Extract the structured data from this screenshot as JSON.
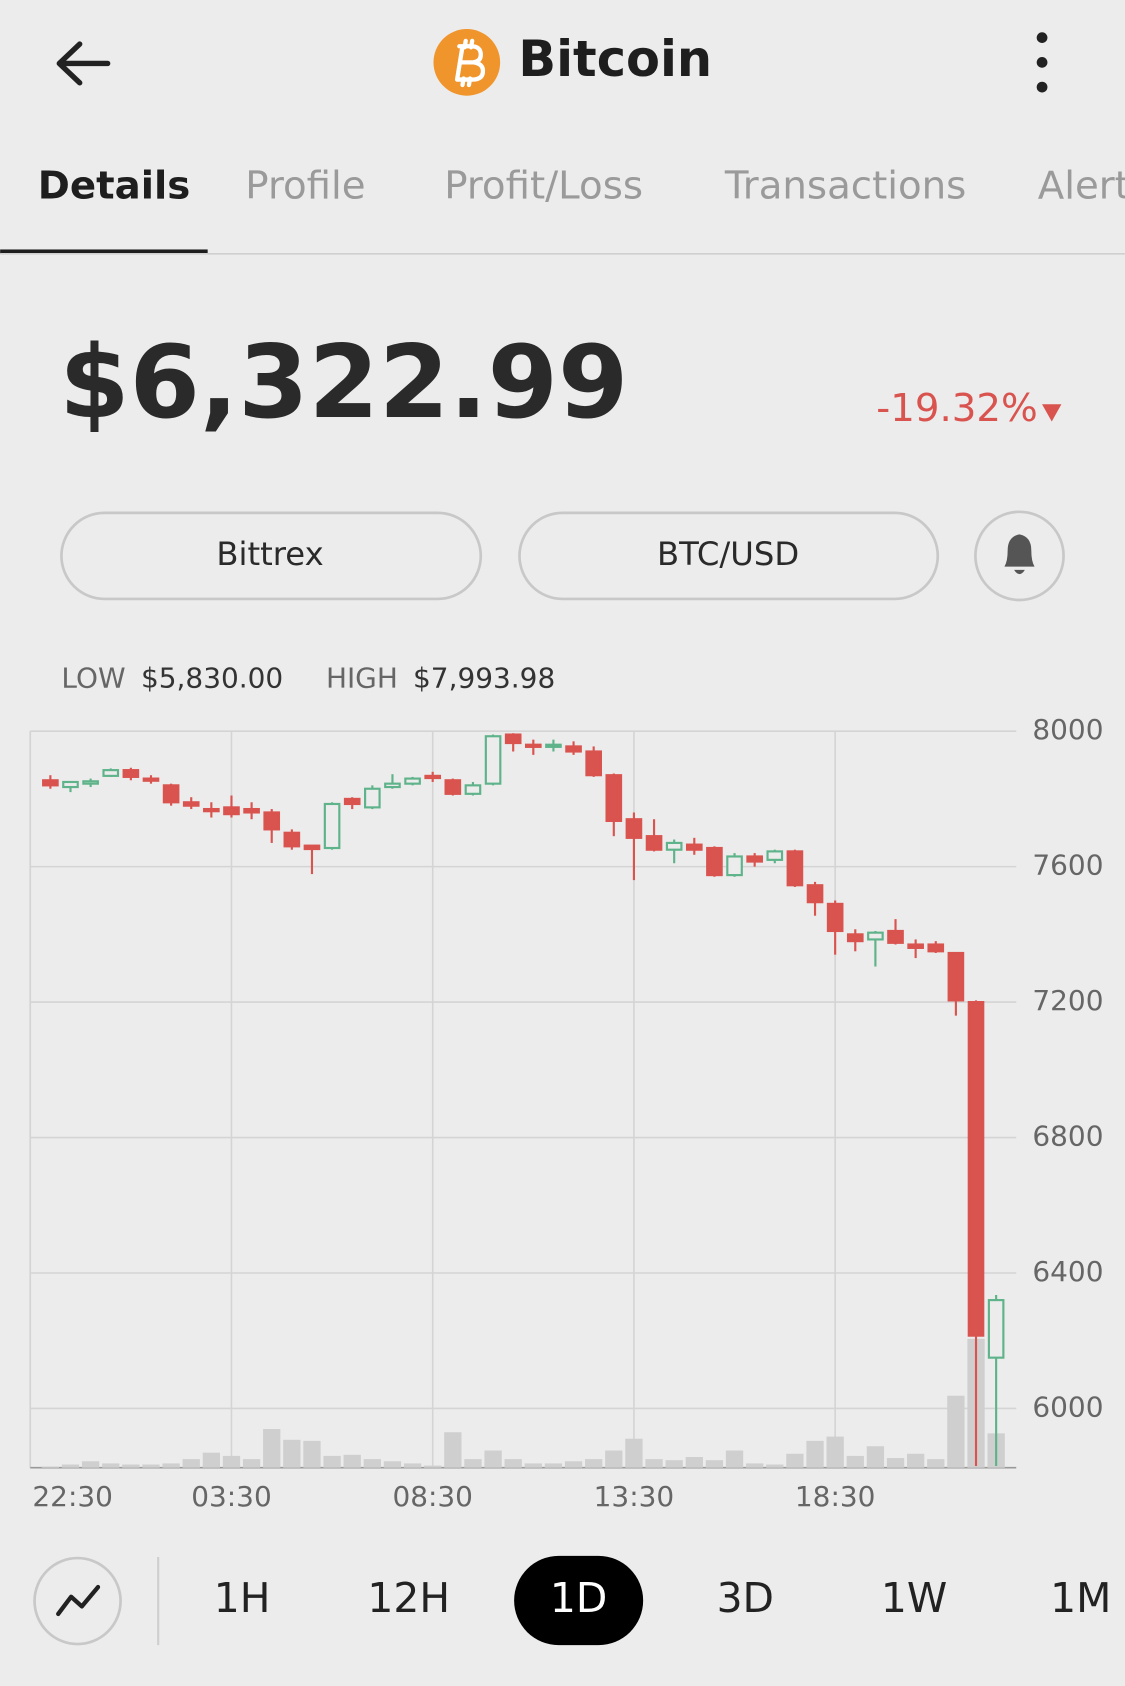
{
  "header": {
    "title": "Bitcoin"
  },
  "tabs": {
    "items": [
      "Details",
      "Profile",
      "Profit/Loss",
      "Transactions",
      "Alert"
    ],
    "selected": "Details"
  },
  "price": {
    "value": "$6,322.99",
    "change": "-19.32%"
  },
  "buttons": {
    "exchange": "Bittrex",
    "pair": "BTC/USD"
  },
  "range": {
    "low_label": "LOW",
    "low": "$5,830.00",
    "high_label": "HIGH",
    "high": "$7,993.98"
  },
  "timeframes": {
    "items": [
      "1H",
      "12H",
      "1D",
      "3D",
      "1W",
      "1M"
    ],
    "selected": "1D"
  },
  "chart_data": {
    "type": "candlestick",
    "x": [
      0.5,
      1,
      1.5,
      2,
      2.5,
      3,
      3.5,
      4,
      4.5,
      5,
      5.5,
      6,
      6.5,
      7,
      7.5,
      8,
      8.5,
      9,
      9.5,
      10,
      10.5,
      11,
      11.5,
      12,
      12.5,
      13,
      13.5,
      14,
      14.5,
      15,
      15.5,
      16,
      16.5,
      17,
      17.5,
      18,
      18.5,
      19,
      19.5,
      20,
      20.5,
      21,
      21.5,
      22,
      22.5,
      23,
      23.5,
      24
    ],
    "open": [
      7855,
      7835,
      7845,
      7868,
      7885,
      7860,
      7840,
      7790,
      7770,
      7775,
      7770,
      7760,
      7700,
      7662,
      7655,
      7800,
      7775,
      7835,
      7845,
      7868,
      7855,
      7815,
      7845,
      7990,
      7960,
      7955,
      7955,
      7940,
      7870,
      7740,
      7690,
      7650,
      7665,
      7655,
      7575,
      7630,
      7620,
      7645,
      7545,
      7490,
      7400,
      7385,
      7410,
      7370,
      7370,
      7345,
      7200,
      6150
    ],
    "high": [
      7870,
      7850,
      7860,
      7890,
      7892,
      7870,
      7845,
      7805,
      7790,
      7810,
      7790,
      7770,
      7710,
      7662,
      7790,
      7805,
      7840,
      7873,
      7865,
      7880,
      7860,
      7850,
      7990,
      7994,
      7975,
      7975,
      7970,
      7955,
      7875,
      7760,
      7740,
      7680,
      7685,
      7660,
      7640,
      7640,
      7650,
      7650,
      7555,
      7500,
      7415,
      7410,
      7445,
      7385,
      7380,
      7345,
      7205,
      6335
    ],
    "low": [
      7830,
      7820,
      7835,
      7865,
      7855,
      7845,
      7780,
      7770,
      7745,
      7745,
      7740,
      7670,
      7650,
      7578,
      7650,
      7770,
      7770,
      7830,
      7840,
      7850,
      7810,
      7810,
      7840,
      7940,
      7930,
      7940,
      7930,
      7865,
      7690,
      7560,
      7645,
      7610,
      7635,
      7570,
      7570,
      7600,
      7610,
      7540,
      7455,
      7340,
      7350,
      7305,
      7370,
      7330,
      7345,
      7160,
      5830,
      5830
    ],
    "close": [
      7840,
      7850,
      7852,
      7885,
      7865,
      7855,
      7790,
      7780,
      7765,
      7755,
      7760,
      7710,
      7660,
      7652,
      7785,
      7785,
      7830,
      7845,
      7860,
      7862,
      7815,
      7840,
      7985,
      7965,
      7955,
      7960,
      7940,
      7870,
      7735,
      7685,
      7650,
      7670,
      7650,
      7575,
      7630,
      7615,
      7645,
      7545,
      7495,
      7410,
      7380,
      7405,
      7375,
      7360,
      7350,
      7205,
      6215,
      6320
    ],
    "volume": [
      1,
      3,
      6,
      4,
      3,
      3,
      4,
      8,
      14,
      11,
      8,
      36,
      26,
      25,
      11,
      12,
      8,
      6,
      4,
      2,
      33,
      8,
      16,
      8,
      4,
      4,
      6,
      8,
      16,
      27,
      8,
      7,
      10,
      7,
      16,
      4,
      3,
      13,
      25,
      29,
      11,
      20,
      9,
      13,
      8,
      67,
      120,
      32
    ],
    "up_color": "#5fb38a",
    "down_color": "#d9534f",
    "volume_color": "#cfcfcf",
    "xlim": [
      0,
      24.5
    ],
    "xticks": [
      {
        "value": 0,
        "label": "22:30"
      },
      {
        "value": 5,
        "label": "03:30"
      },
      {
        "value": 10,
        "label": "08:30"
      },
      {
        "value": 15,
        "label": "13:30"
      },
      {
        "value": 20,
        "label": "18:30"
      }
    ],
    "ylim": [
      5825,
      8000
    ],
    "yticks": [
      6000,
      6400,
      6800,
      7200,
      7600,
      8000
    ],
    "grid": true
  }
}
